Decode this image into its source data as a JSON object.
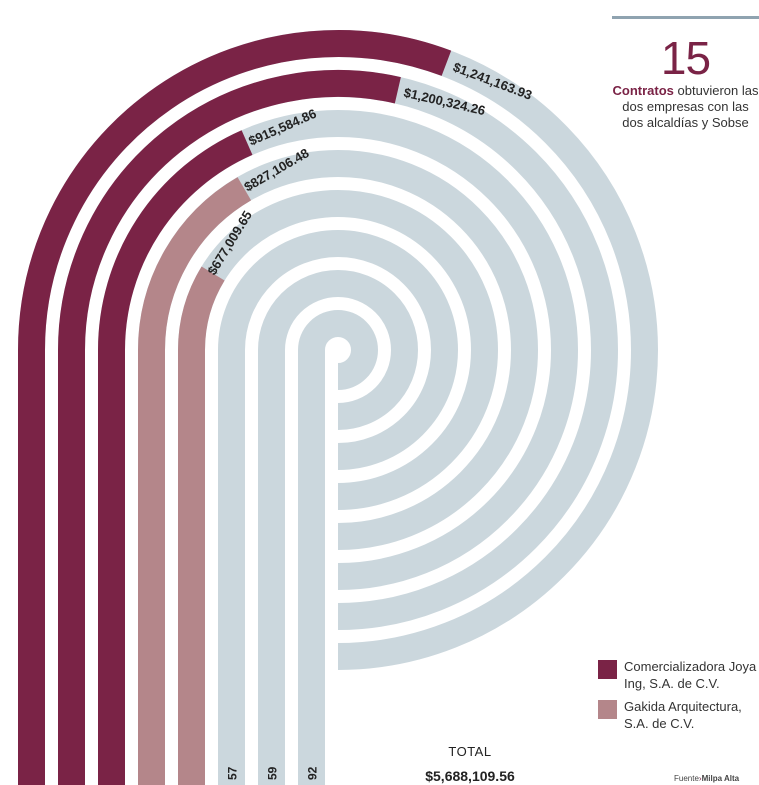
{
  "chart_data": {
    "type": "radial-bar",
    "series": [
      {
        "name": "Comercializadora Joya Ing, S.A. de C.V.",
        "color": "#7a2346",
        "values": [
          1241163.93,
          1200324.26,
          915584.86
        ]
      },
      {
        "name": "Gakida Arquitectura, S.A. de C.V.",
        "color": "#b4868a",
        "values": [
          827106.48,
          677009.65
        ]
      }
    ],
    "bars": [
      {
        "label": "$1,241,163.93",
        "value": 1241163.93,
        "series": 0
      },
      {
        "label": "$1,200,324.26",
        "value": 1200324.26,
        "series": 0
      },
      {
        "label": "$915,584.86",
        "value": 915584.86,
        "series": 0
      },
      {
        "label": "$827,106.48",
        "value": 827106.48,
        "series": 1
      },
      {
        "label": "$677,009.65",
        "value": 677009.65,
        "series": 1
      },
      {
        "label": "57",
        "value": null,
        "series": 1
      },
      {
        "label": "59",
        "value": null,
        "series": 1
      },
      {
        "label": "92",
        "value": null,
        "series": 1
      }
    ],
    "track_color": "#cbd7dd",
    "total_label": "TOTAL",
    "total_value": "$5,688,109.56"
  },
  "callout": {
    "number": "15",
    "bold_word": "Contratos",
    "rest": "obtuvieron las dos empresas con las dos alcaldías y Sobse"
  },
  "legend": [
    {
      "label": "Comercializadora Joya Ing, S.A. de C.V.",
      "color": "#7a2346"
    },
    {
      "label": "Gakida Arquitectura, S.A. de C.V.",
      "color": "#b4868a"
    }
  ],
  "source": {
    "prefix": "Fuente",
    "name": "Milpa Alta"
  }
}
